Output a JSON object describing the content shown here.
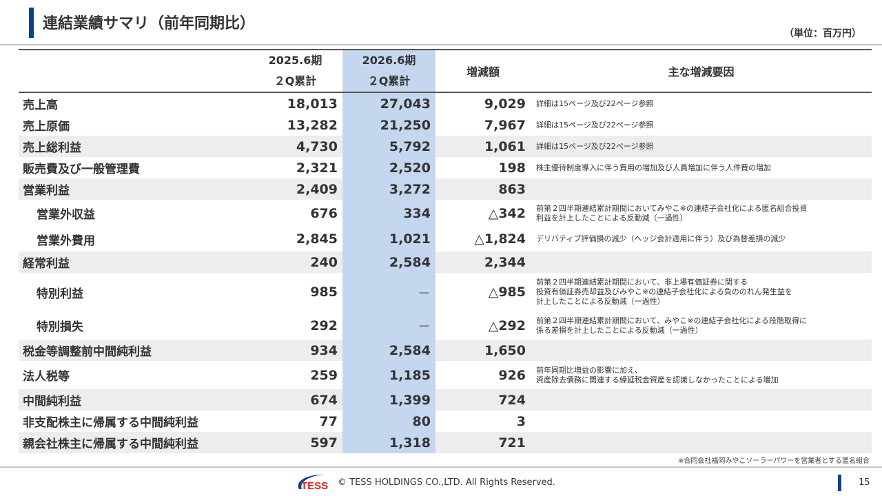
{
  "header": {
    "title": "連結業績サマリ（前年同期比）",
    "unit": "（単位：百万円）"
  },
  "table": {
    "columns": {
      "prev": [
        "2025.6期",
        "２Q累計"
      ],
      "curr": [
        "2026.6期",
        "２Q累計"
      ],
      "diff": "増減額",
      "reason": "主な増減要因"
    },
    "rows": [
      {
        "label": "売上高",
        "prev": "18,013",
        "curr": "27,043",
        "diff": "9,029",
        "reason": "詳細は15ページ及び22ページ参照",
        "shade": false,
        "indent": false
      },
      {
        "label": "売上原価",
        "prev": "13,282",
        "curr": "21,250",
        "diff": "7,967",
        "reason": "詳細は15ページ及び22ページ参照",
        "shade": false,
        "indent": false
      },
      {
        "label": "売上総利益",
        "prev": "4,730",
        "curr": "5,792",
        "diff": "1,061",
        "reason": "詳細は15ページ及び22ページ参照",
        "shade": true,
        "indent": false
      },
      {
        "label": "販売費及び一般管理費",
        "prev": "2,321",
        "curr": "2,520",
        "diff": "198",
        "reason": "株主優待制度導入に伴う費用の増加及び人員増加に伴う人件費の増加",
        "shade": false,
        "indent": false
      },
      {
        "label": "営業利益",
        "prev": "2,409",
        "curr": "3,272",
        "diff": "863",
        "reason": "",
        "shade": true,
        "indent": false
      },
      {
        "label": "営業外収益",
        "prev": "676",
        "curr": "334",
        "diff": "△342",
        "reason": "前第２四半期連結累計期間においてみやこ※の連結子会社化による匿名組合投資\n利益を計上したことによる反動減（一過性）",
        "shade": false,
        "indent": true
      },
      {
        "label": "営業外費用",
        "prev": "2,845",
        "curr": "1,021",
        "diff": "△1,824",
        "reason": "デリバティブ評価損の減少（ヘッジ会計適用に伴う）及び為替差損の減少",
        "shade": false,
        "indent": true
      },
      {
        "label": "経常利益",
        "prev": "240",
        "curr": "2,584",
        "diff": "2,344",
        "reason": "",
        "shade": true,
        "indent": false
      },
      {
        "label": "特別利益",
        "prev": "985",
        "curr": "－",
        "diff": "△985",
        "reason": "前第２四半期連結累計期間において、非上場有価証券に関する\n投資有価証券売却益及びみやこ※の連結子会社化による負ののれん発生益を\n計上したことによる反動減（一過性）",
        "shade": false,
        "indent": true
      },
      {
        "label": "特別損失",
        "prev": "292",
        "curr": "－",
        "diff": "△292",
        "reason": "前第２四半期連結累計期間において、みやこ※の連結子会社化による段階取得に\n係る差損を計上したことによる反動減（一過性）",
        "shade": false,
        "indent": true
      },
      {
        "label": "税金等調整前中間純利益",
        "prev": "934",
        "curr": "2,584",
        "diff": "1,650",
        "reason": "",
        "shade": true,
        "indent": false
      },
      {
        "label": "法人税等",
        "prev": "259",
        "curr": "1,185",
        "diff": "926",
        "reason": "前年同期比増益の影響に加え、\n資産除去債務に関連する繰延税金資産を認識しなかったことによる増加",
        "shade": false,
        "indent": false
      },
      {
        "label": "中間純利益",
        "prev": "674",
        "curr": "1,399",
        "diff": "724",
        "reason": "",
        "shade": true,
        "indent": false
      },
      {
        "label": "非支配株主に帰属する中間純利益",
        "prev": "77",
        "curr": "80",
        "diff": "3",
        "reason": "",
        "shade": false,
        "indent": false
      },
      {
        "label": "親会社株主に帰属する中間純利益",
        "prev": "597",
        "curr": "1,318",
        "diff": "721",
        "reason": "",
        "shade": true,
        "indent": false
      }
    ]
  },
  "footnote": "※合同会社福岡みやこソーラーパワーを営業者とする匿名組合",
  "footer": {
    "logo_text": "TESS",
    "copyright": "© TESS HOLDINGS CO.,LTD. All Rights Reserved.",
    "page": "15"
  },
  "colors": {
    "accent": "#0d3f94",
    "highlight_column": "#c5d7ef",
    "shade_row": "#ededed"
  }
}
